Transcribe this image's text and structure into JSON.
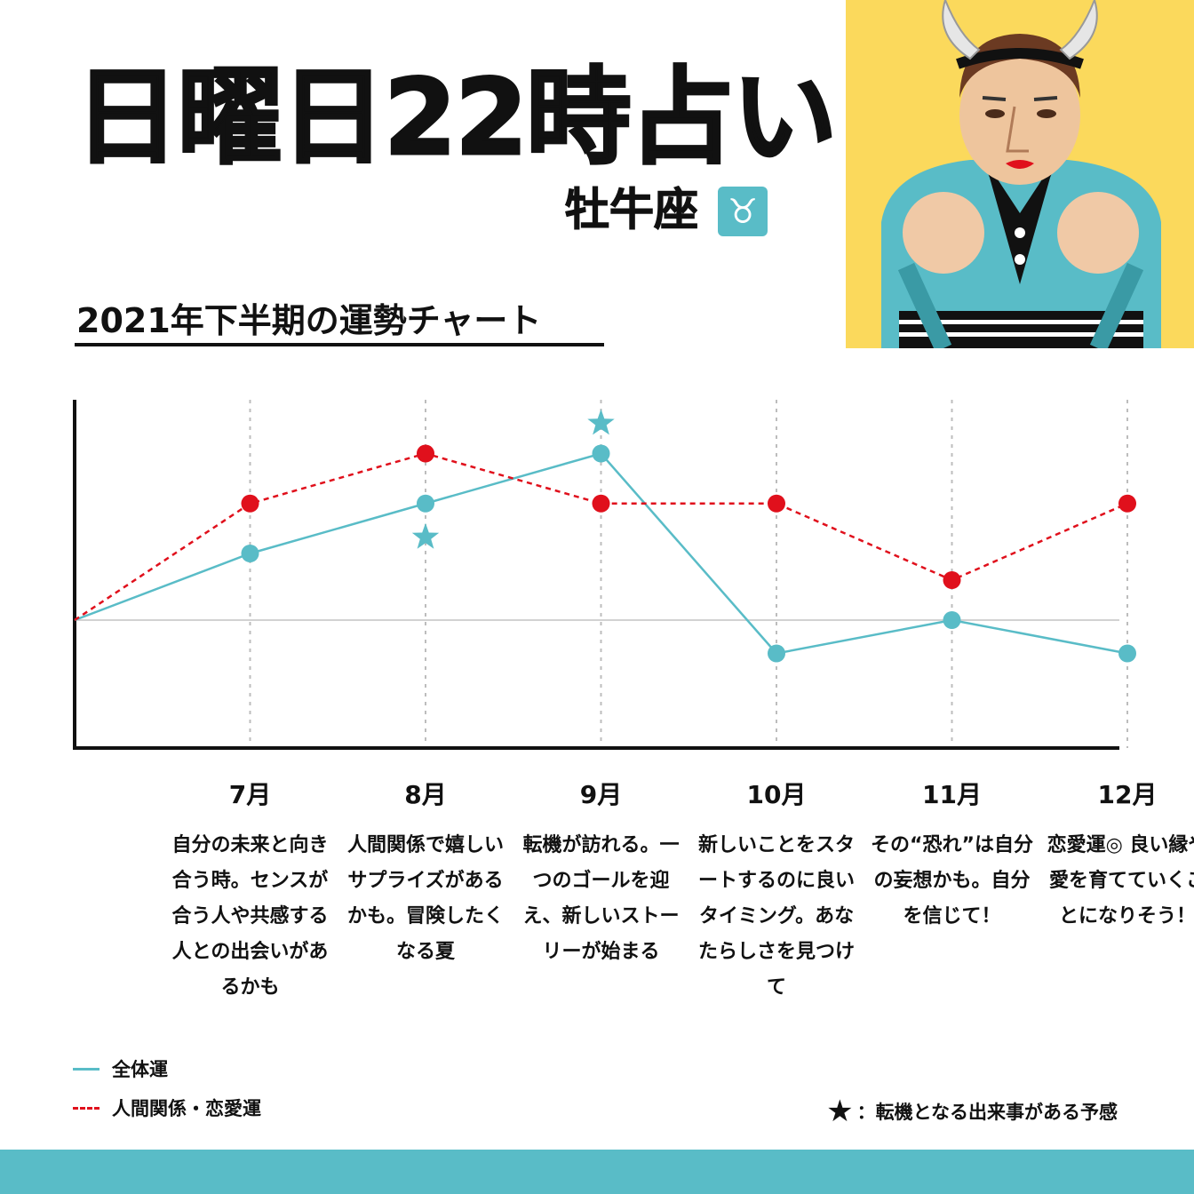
{
  "header": {
    "title": "日曜日22時占い",
    "sign": "牡牛座",
    "sign_glyph": "♉"
  },
  "colors": {
    "accent_teal": "#59bcc7",
    "accent_red": "#e0101c",
    "illustration_bg": "#fbd95c"
  },
  "chart_data": {
    "type": "line",
    "title": "2021年下半期の運勢チャート",
    "x_origin_label": "",
    "categories": [
      "7月",
      "8月",
      "9月",
      "10月",
      "11月",
      "12月"
    ],
    "ylim": [
      -4,
      7
    ],
    "baseline": 0,
    "series": [
      {
        "name": "全体運",
        "style": "solid",
        "color": "#59bcc7",
        "start": 0,
        "values": [
          2,
          3.5,
          5,
          -1,
          0,
          -1
        ]
      },
      {
        "name": "人間関係・恋愛運",
        "style": "dashed",
        "color": "#e0101c",
        "start": 0,
        "values": [
          3.5,
          5,
          3.5,
          3.5,
          1.2,
          3.5
        ]
      }
    ],
    "stars": [
      {
        "category": "8月",
        "position": "below"
      },
      {
        "category": "9月",
        "position": "above"
      }
    ],
    "grid": "vertical-dotted",
    "legend": "bottom-left"
  },
  "descriptions": [
    "自分の未来と向き合う時。センスが合う人や共感する人との出会いがあるかも",
    "人間関係で嬉しいサプライズがあるかも。冒険したくなる夏",
    "転機が訪れる。一つのゴールを迎え、新しいストーリーが始まる",
    "新しいことをスタートするのに良いタイミング。あなたらしさを見つけて",
    "その“恐れ”は自分の妄想かも。自分を信じて！",
    "恋愛運◎ 良い縁や愛を育てていくことになりそう！"
  ],
  "legend": {
    "overall": "全体運",
    "relationship": "人間関係・恋愛運",
    "star_glyph": "★",
    "star_note": "：転機となる出来事がある予感"
  }
}
